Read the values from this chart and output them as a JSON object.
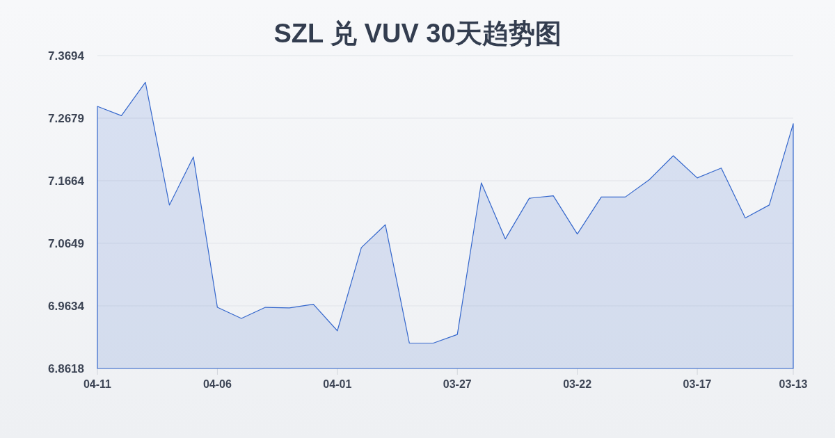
{
  "chart_data": {
    "type": "area",
    "title": "SZL 兑 VUV 30天趋势图",
    "categories": [
      "04-11",
      null,
      null,
      null,
      null,
      "04-06",
      null,
      null,
      null,
      null,
      "04-01",
      null,
      null,
      null,
      null,
      "03-27",
      null,
      null,
      null,
      null,
      "03-22",
      null,
      null,
      null,
      null,
      "03-17",
      null,
      null,
      null,
      "03-13"
    ],
    "series": [
      {
        "color": "#3366cc",
        "values": [
          7.287,
          7.272,
          7.326,
          7.127,
          7.205,
          6.961,
          6.943,
          6.961,
          6.96,
          6.966,
          6.923,
          7.058,
          7.095,
          6.903,
          6.903,
          6.917,
          7.163,
          7.072,
          7.138,
          7.142,
          7.08,
          7.14,
          7.14,
          7.168,
          7.207,
          7.171,
          7.187,
          7.106,
          7.127,
          7.259
        ]
      }
    ],
    "ylim": [
      6.8618,
      7.3694
    ],
    "yticks": [
      6.8618,
      6.9634,
      7.0649,
      7.1664,
      7.2679,
      7.3694
    ],
    "grid": "y"
  }
}
